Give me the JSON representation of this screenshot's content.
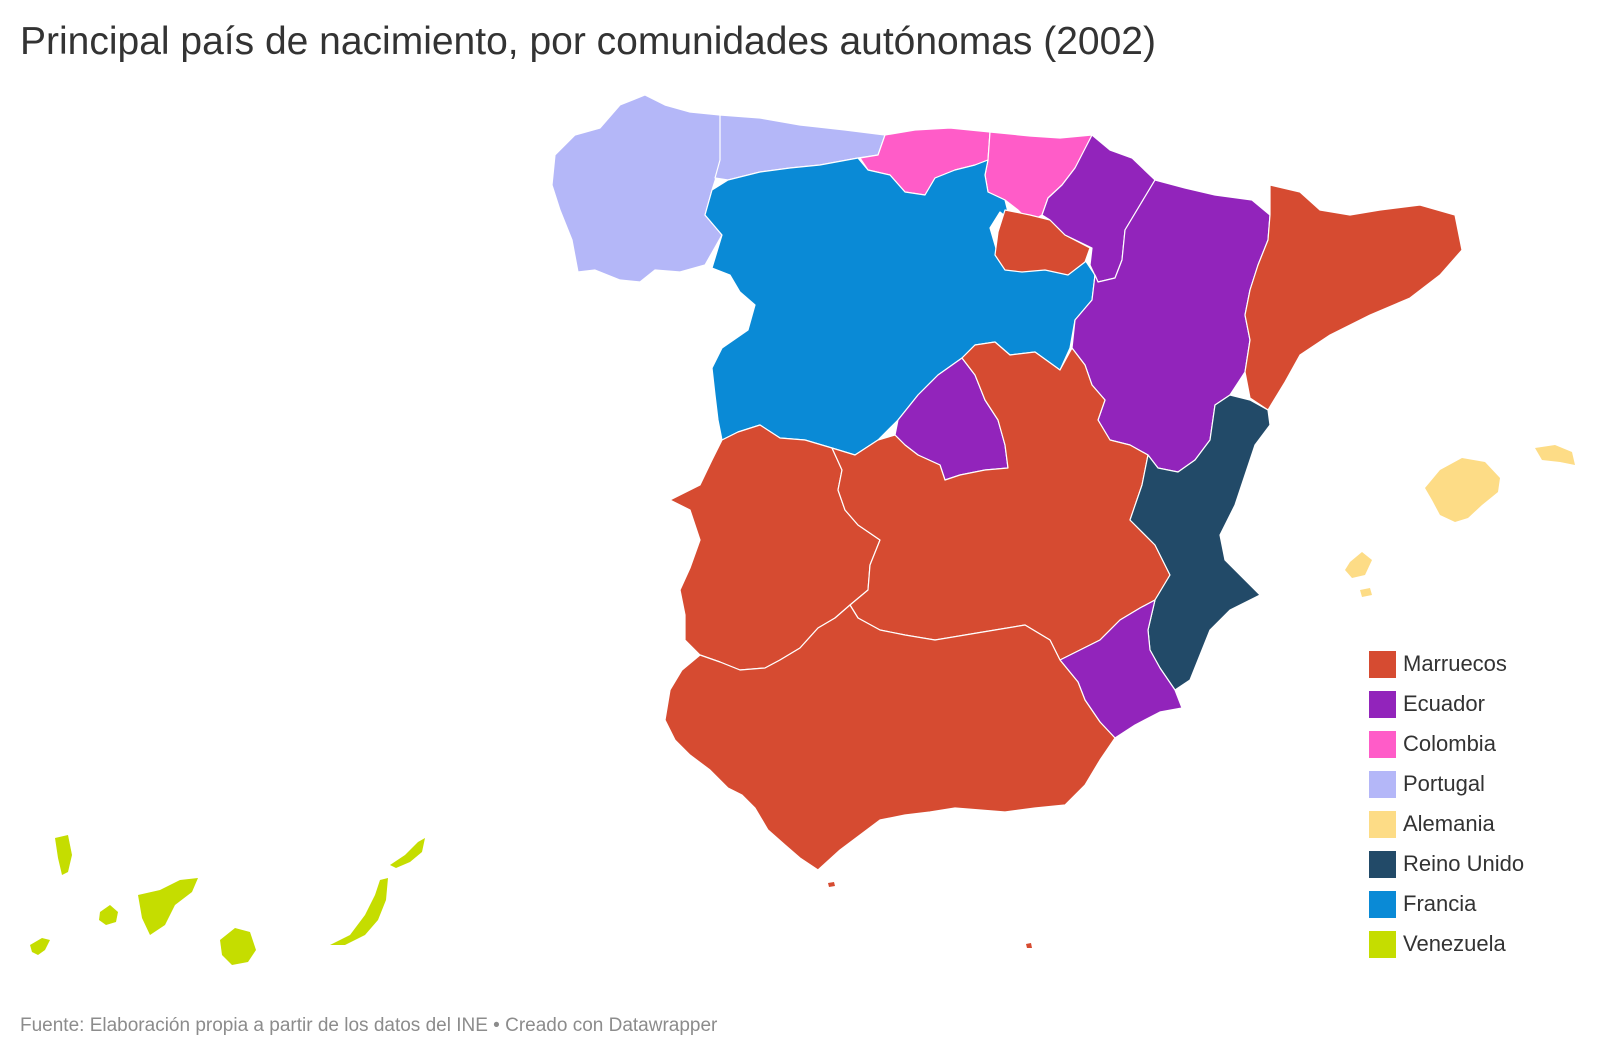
{
  "title": "Principal país de nacimiento, por comunidades autónomas (2002)",
  "legend": [
    {
      "label": "Marruecos",
      "color": "#d64b31"
    },
    {
      "label": "Ecuador",
      "color": "#9224bb"
    },
    {
      "label": "Colombia",
      "color": "#ff5cc8"
    },
    {
      "label": "Portugal",
      "color": "#b4b7f8"
    },
    {
      "label": "Alemania",
      "color": "#fddc86"
    },
    {
      "label": "Reino Unido",
      "color": "#224a68"
    },
    {
      "label": "Francia",
      "color": "#0a8ad6"
    },
    {
      "label": "Venezuela",
      "color": "#c5dd00"
    }
  ],
  "regions": [
    {
      "category": "Portugal"
    },
    {
      "category": "Colombia"
    },
    {
      "category": "Colombia"
    },
    {
      "category": "Francia"
    },
    {
      "category": "Marruecos"
    },
    {
      "category": "Ecuador"
    },
    {
      "category": "Ecuador"
    },
    {
      "category": "Marruecos"
    },
    {
      "category": "Ecuador"
    },
    {
      "category": "Marruecos"
    },
    {
      "category": "Marruecos"
    },
    {
      "category": "Reino Unido"
    },
    {
      "category": "Ecuador"
    },
    {
      "category": "Marruecos"
    },
    {
      "category": "Alemania"
    },
    {
      "category": "Venezuela"
    },
    {
      "category": "Marruecos"
    },
    {
      "category": "Marruecos"
    }
  ],
  "footer": "Fuente: Elaboración propia a partir de los datos del INE • Creado con Datawrapper"
}
